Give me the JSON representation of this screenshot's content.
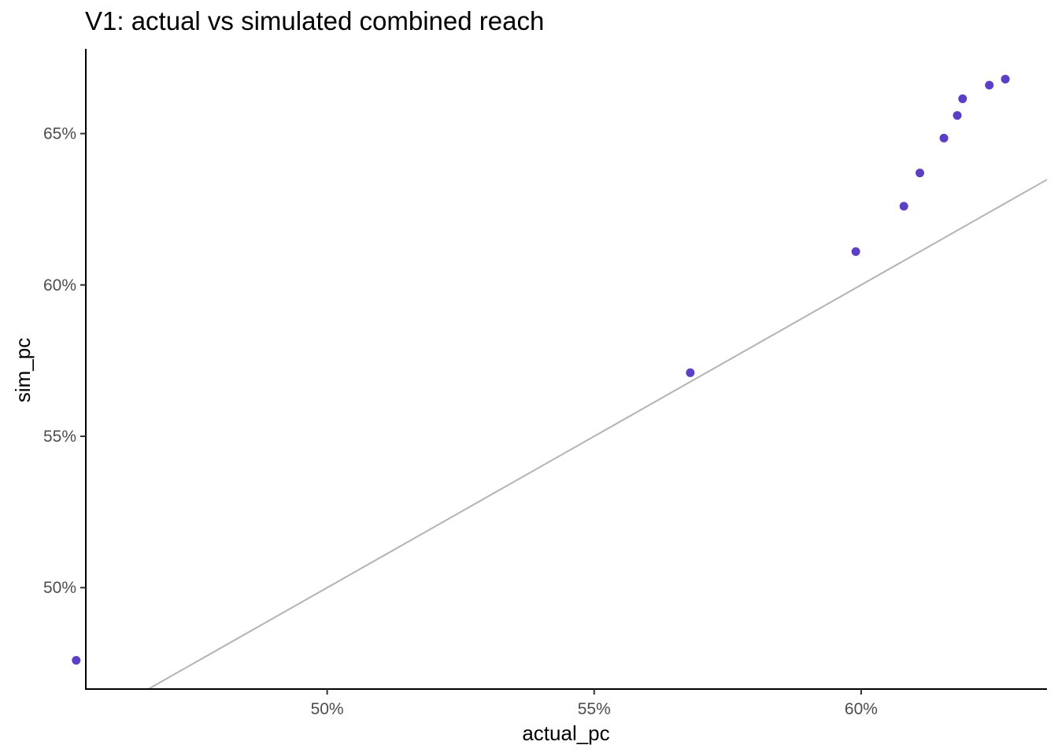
{
  "chart_data": {
    "type": "scatter",
    "title": "V1: actual vs simulated combined reach",
    "xlabel": "actual_pc",
    "ylabel": "sim_pc",
    "xlim": [
      45.48,
      63.48
    ],
    "ylim": [
      46.65,
      67.8
    ],
    "x_ticks": [
      50,
      55,
      60
    ],
    "x_tick_labels": [
      "50%",
      "55%",
      "60%"
    ],
    "y_ticks": [
      50,
      55,
      60,
      65
    ],
    "y_tick_labels": [
      "50%",
      "55%",
      "60%",
      "65%"
    ],
    "grid": false,
    "reference_line": {
      "type": "identity",
      "color": "#b3b3b3"
    },
    "point_color": "#5b3fc4",
    "series": [
      {
        "points": [
          {
            "x": 45.3,
            "y": 47.6
          },
          {
            "x": 56.8,
            "y": 57.1
          },
          {
            "x": 59.9,
            "y": 61.1
          },
          {
            "x": 60.8,
            "y": 62.6
          },
          {
            "x": 61.1,
            "y": 63.7
          },
          {
            "x": 61.55,
            "y": 64.85
          },
          {
            "x": 61.8,
            "y": 65.6
          },
          {
            "x": 61.9,
            "y": 66.15
          },
          {
            "x": 62.4,
            "y": 66.6
          },
          {
            "x": 62.7,
            "y": 66.8
          }
        ]
      }
    ]
  }
}
